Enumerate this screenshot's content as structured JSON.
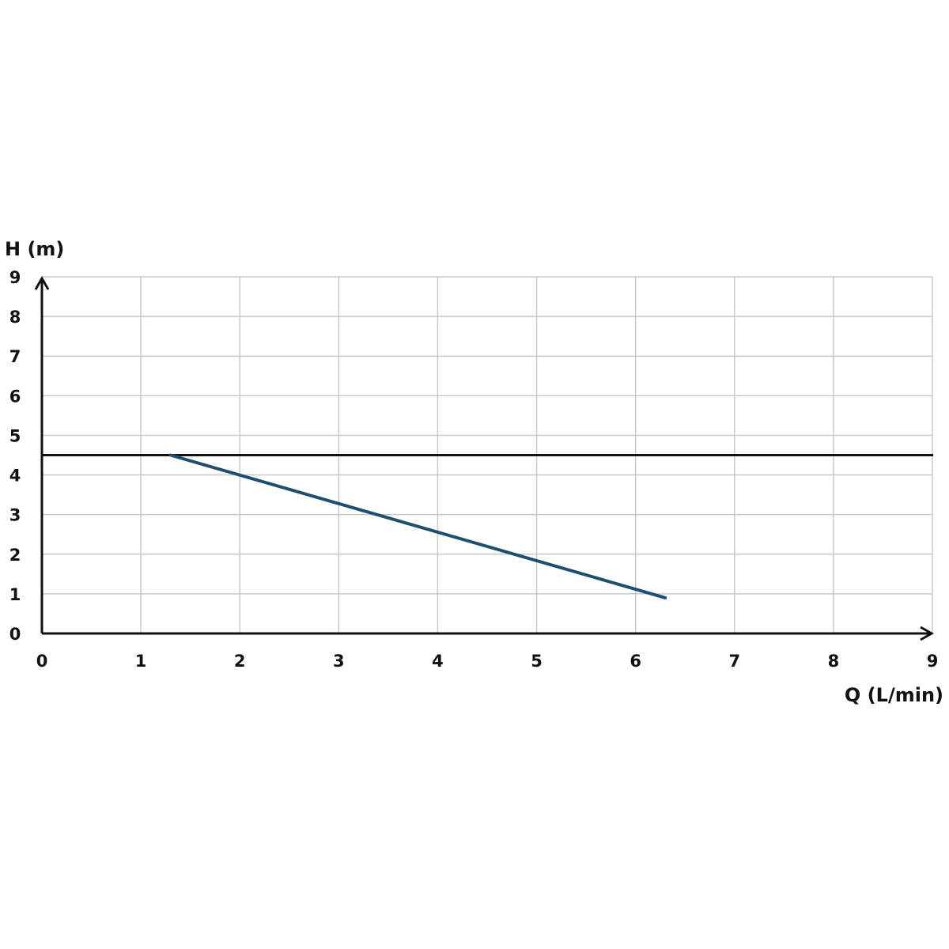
{
  "chart_data": {
    "type": "line",
    "title": "",
    "xlabel": "Q (L/min)",
    "ylabel": "H (m)",
    "xlim": [
      0,
      9
    ],
    "ylim": [
      0,
      9
    ],
    "x_ticks": [
      "0",
      "1",
      "2",
      "3",
      "4",
      "5",
      "6",
      "7",
      "8",
      "9"
    ],
    "y_ticks": [
      "0",
      "1",
      "2",
      "3",
      "4",
      "5",
      "6",
      "7",
      "8",
      "9"
    ],
    "grid": true,
    "series": [
      {
        "x": [
          1.3,
          6.3
        ],
        "y": [
          4.5,
          0.9
        ],
        "color": "#1f4e6e"
      }
    ],
    "reference_lines": [
      {
        "orientation": "horizontal",
        "y": 4.5,
        "color": "#111111"
      }
    ]
  }
}
